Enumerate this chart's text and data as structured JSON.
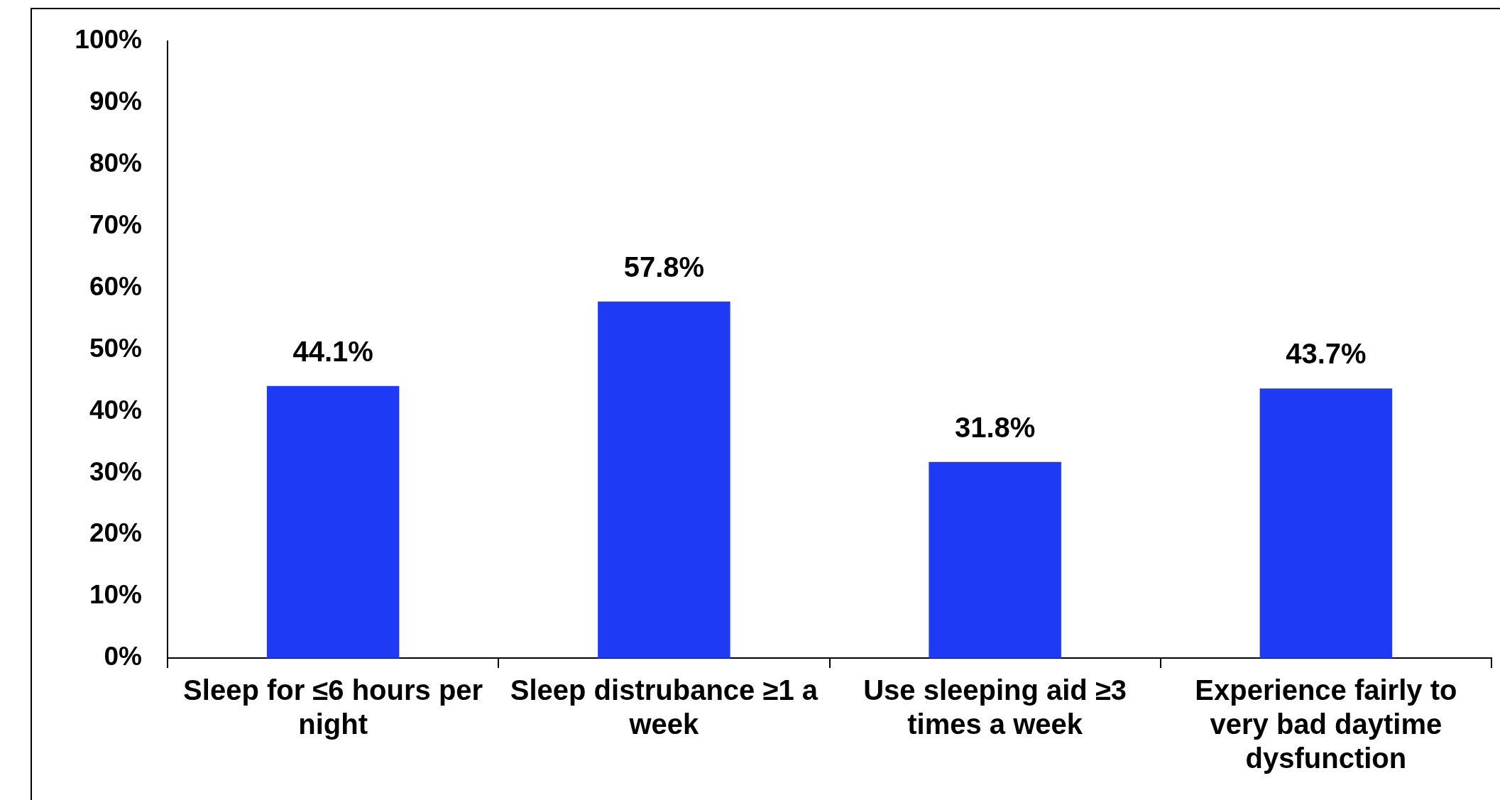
{
  "chart_data": {
    "type": "bar",
    "categories": [
      "Sleep for ≤6 hours per night",
      "Sleep distrubance ≥1 a week",
      "Use sleeping aid ≥3 times a week",
      "Experience fairly to very bad daytime dysfunction"
    ],
    "values": [
      44.1,
      57.8,
      31.8,
      43.7
    ],
    "value_labels": [
      "44.1%",
      "57.8%",
      "31.8%",
      "43.7%"
    ],
    "color": "#1f3af5",
    "ylim": [
      0,
      100
    ],
    "yticks": [
      {
        "value": 0,
        "label": "0%"
      },
      {
        "value": 10,
        "label": "10%"
      },
      {
        "value": 20,
        "label": "20%"
      },
      {
        "value": 30,
        "label": "30%"
      },
      {
        "value": 40,
        "label": "40%"
      },
      {
        "value": 50,
        "label": "50%"
      },
      {
        "value": 60,
        "label": "60%"
      },
      {
        "value": 70,
        "label": "70%"
      },
      {
        "value": 80,
        "label": "80%"
      },
      {
        "value": 90,
        "label": "90%"
      },
      {
        "value": 100,
        "label": "100%"
      }
    ],
    "grid": false,
    "legend": false
  }
}
